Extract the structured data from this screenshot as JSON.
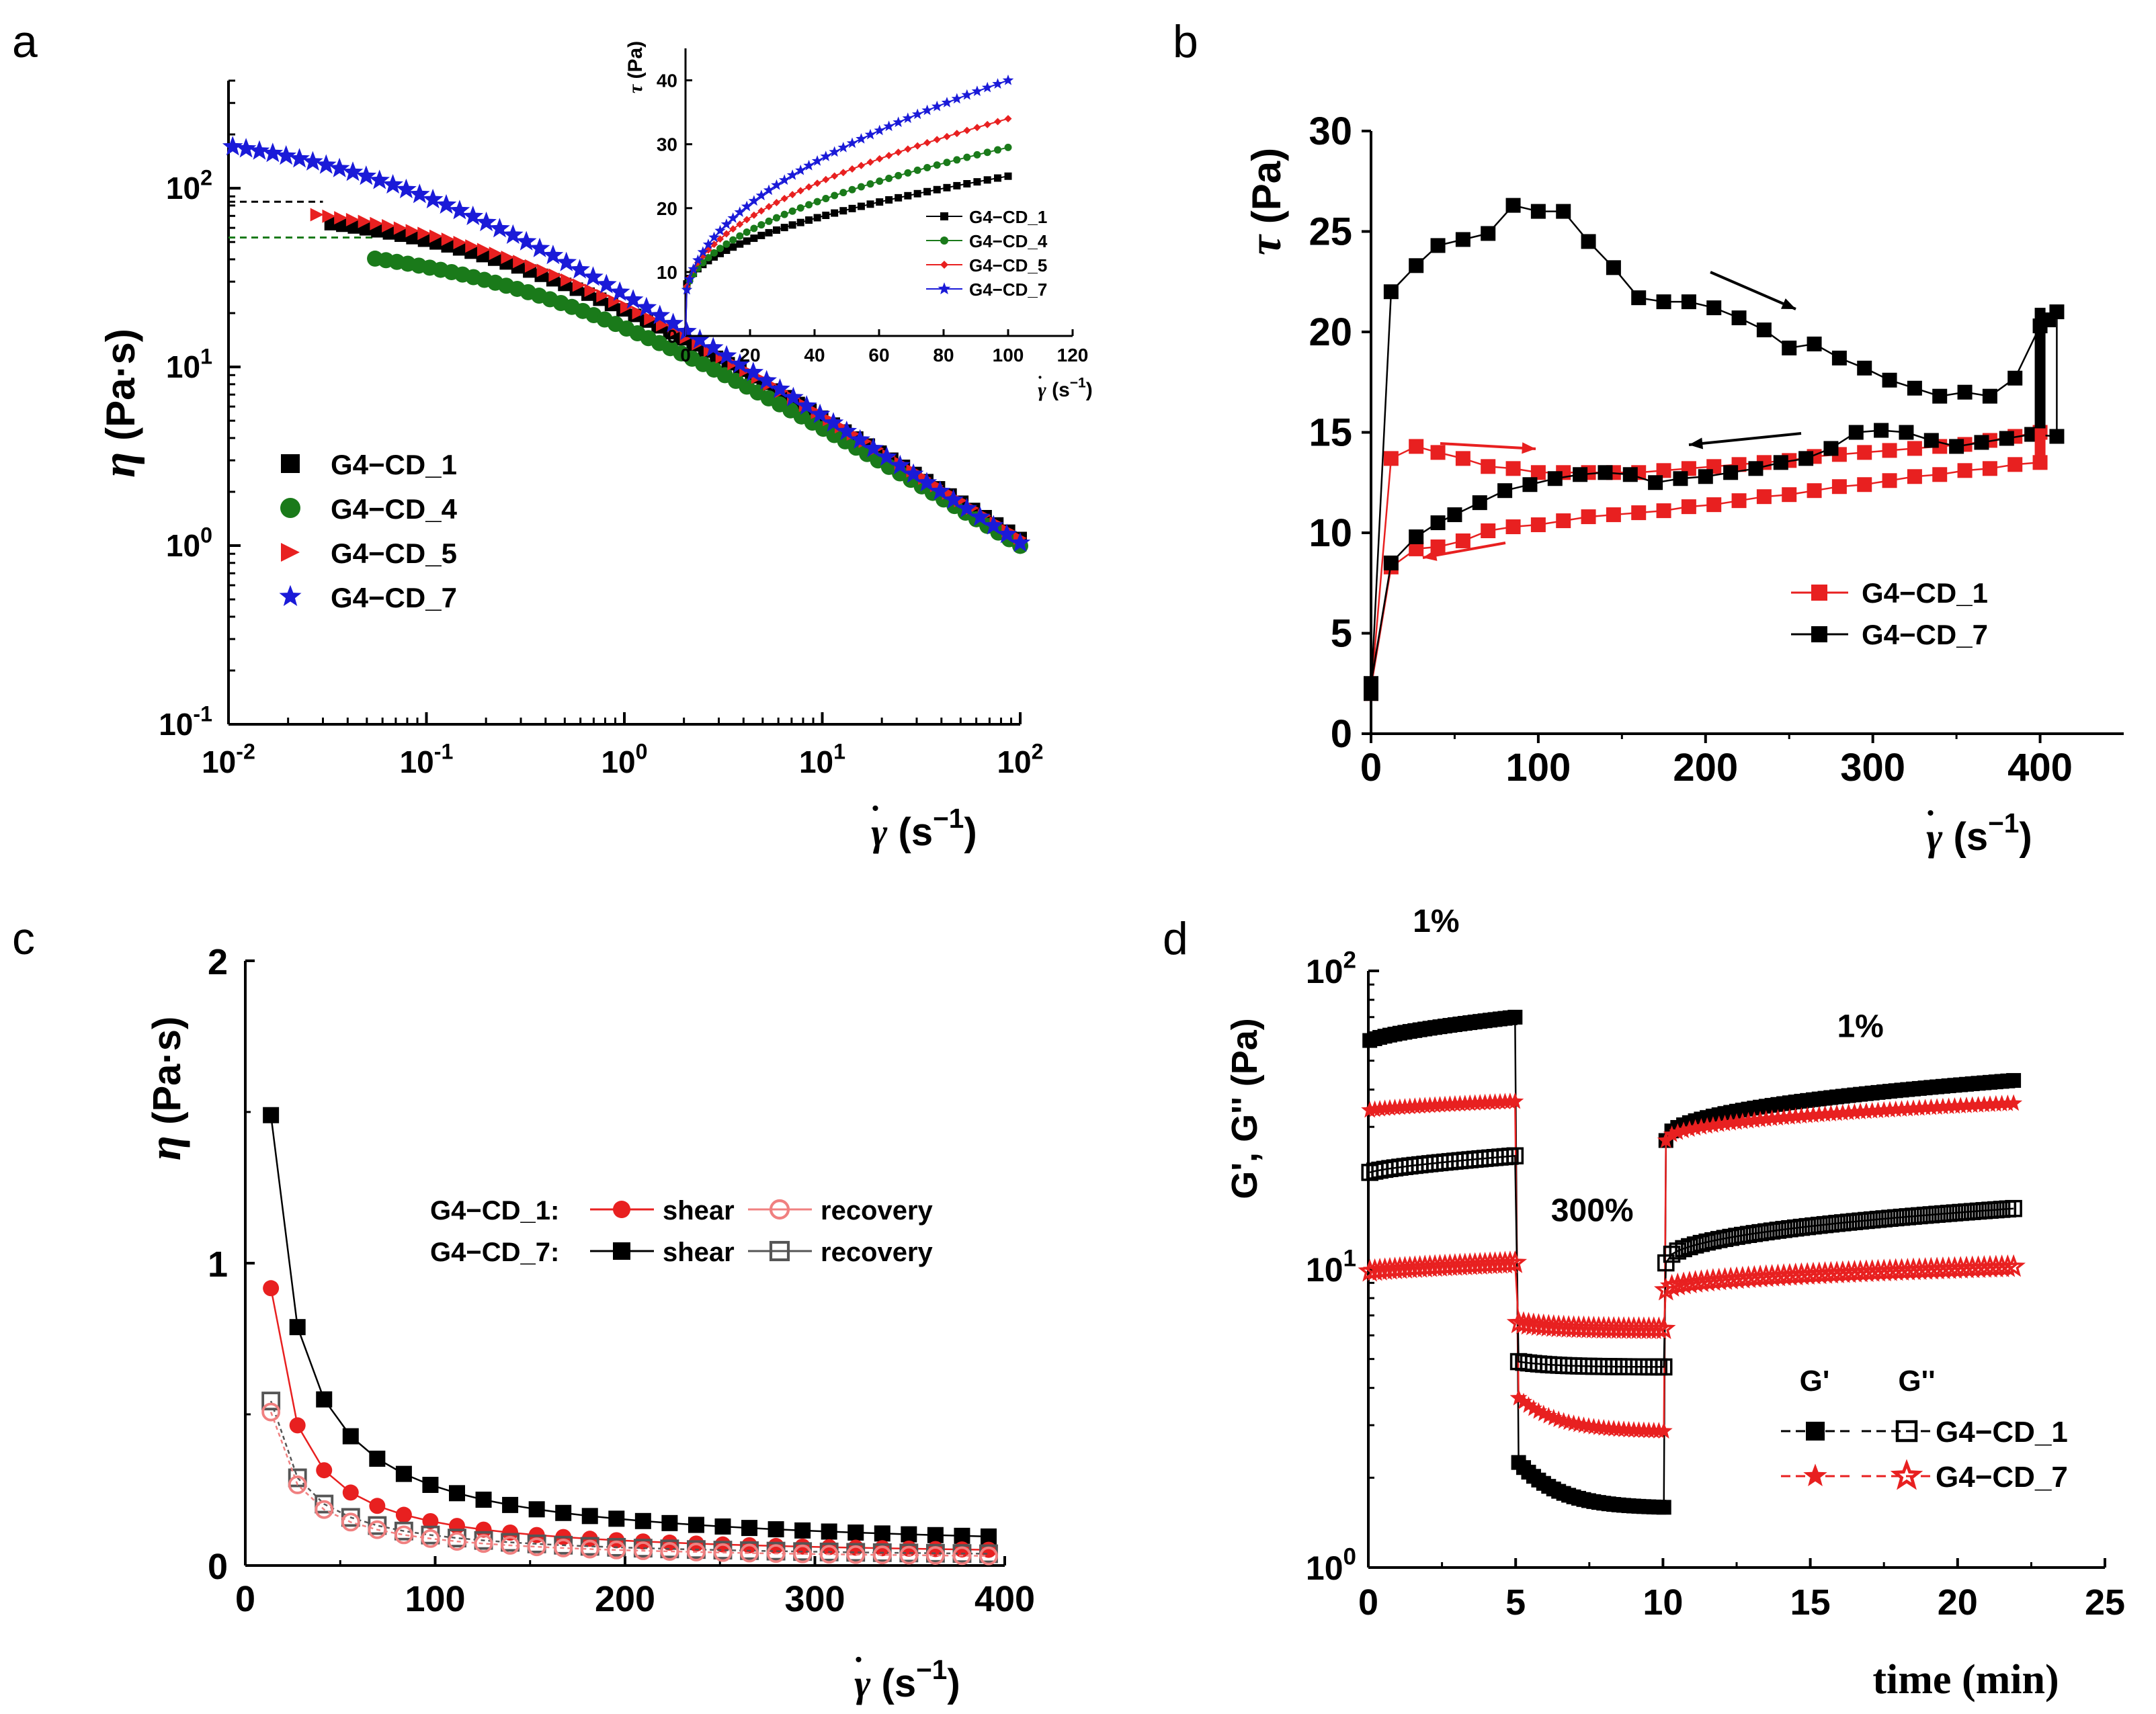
{
  "colors": {
    "black": "#000000",
    "green": "#1a7a1a",
    "red": "#e82020",
    "blue": "#1a1ad8",
    "lightred": "#f08080",
    "gray": "#555555"
  },
  "chart_data": [
    {
      "id": "a",
      "panel_label": "a",
      "type": "scatter",
      "xscale": "log",
      "yscale": "log",
      "xlim": [
        0.01,
        100
      ],
      "ylim": [
        0.1,
        400
      ],
      "xlabel": "γ̇ (s⁻¹)",
      "ylabel": "η (Pa·s)",
      "xticks": [
        0.01,
        0.1,
        1,
        10,
        100
      ],
      "yticks": [
        0.1,
        1,
        10,
        100
      ],
      "xtick_labels": [
        [
          "10",
          "-2"
        ],
        [
          "10",
          "-1"
        ],
        [
          "10",
          "0"
        ],
        [
          "10",
          "1"
        ],
        [
          "10",
          "2"
        ]
      ],
      "ytick_labels": [
        [
          "10",
          "-1"
        ],
        [
          "10",
          "0"
        ],
        [
          "10",
          "1"
        ],
        [
          "10",
          "2"
        ]
      ],
      "legend_position": "left",
      "series": [
        {
          "name": "G4−CD_1",
          "marker": "square",
          "color": "#000000",
          "eta0": 80,
          "x_start": 0.033,
          "lambda": 4.5,
          "n": 0.3
        },
        {
          "name": "G4−CD_4",
          "marker": "circle",
          "color": "#1a7a1a",
          "eta0": 52,
          "x_start": 0.055,
          "lambda": 3.0,
          "n": 0.31
        },
        {
          "name": "G4−CD_5",
          "marker": "triangle-right",
          "color": "#e82020",
          "eta0": 88,
          "x_start": 0.028,
          "lambda": 4.7,
          "n": 0.29
        },
        {
          "name": "G4−CD_7",
          "marker": "star",
          "color": "#1a1ad8",
          "eta0": 220,
          "x_start": 0.0105,
          "lambda": 17,
          "n": 0.28
        }
      ],
      "guides": [
        {
          "y": 84,
          "x_from": 0.01,
          "x_to": 0.03,
          "color": "#000000"
        },
        {
          "y": 53,
          "x_from": 0.01,
          "x_to": 0.055,
          "color": "#1a7a1a"
        }
      ]
    },
    {
      "id": "a_inset",
      "type": "scatter",
      "xlim": [
        0,
        120
      ],
      "ylim": [
        0,
        45
      ],
      "xlabel": "γ̇ (s⁻¹)",
      "ylabel": "τ (Pa)",
      "xticks": [
        0,
        20,
        40,
        60,
        80,
        100,
        120
      ],
      "yticks": [
        0,
        10,
        20,
        30,
        40
      ],
      "legend_position": "right",
      "series": [
        {
          "name": "G4−CD_1",
          "marker": "square",
          "color": "#000000",
          "tau0": 7,
          "end": 25
        },
        {
          "name": "G4−CD_4",
          "marker": "circle",
          "color": "#1a7a1a",
          "tau0": 6,
          "end": 29.5
        },
        {
          "name": "G4−CD_5",
          "marker": "diamond",
          "color": "#e82020",
          "tau0": 6,
          "end": 34
        },
        {
          "name": "G4−CD_7",
          "marker": "star",
          "color": "#1a1ad8",
          "tau0": 5,
          "end": 40
        }
      ]
    },
    {
      "id": "b",
      "panel_label": "b",
      "type": "scatter",
      "xlim": [
        0,
        450
      ],
      "ylim": [
        0,
        30
      ],
      "xlabel": "γ̇ (s⁻¹)",
      "ylabel": "τ (Pa)",
      "xticks": [
        0,
        100,
        200,
        300,
        400
      ],
      "yticks": [
        0,
        5,
        10,
        15,
        20,
        25,
        30
      ],
      "legend_position": "lower-right",
      "series": [
        {
          "name": "G4−CD_1",
          "color": "#e82020",
          "up": [
            [
              0,
              2
            ],
            [
              12,
              13.7
            ],
            [
              27,
              14.3
            ],
            [
              40,
              14
            ],
            [
              55,
              13.7
            ],
            [
              70,
              13.3
            ],
            [
              85,
              13.2
            ],
            [
              100,
              13
            ],
            [
              115,
              13
            ],
            [
              130,
              13
            ],
            [
              145,
              13
            ],
            [
              160,
              13
            ],
            [
              175,
              13.1
            ],
            [
              190,
              13.2
            ],
            [
              205,
              13.3
            ],
            [
              220,
              13.4
            ],
            [
              235,
              13.5
            ],
            [
              250,
              13.6
            ],
            [
              265,
              13.8
            ],
            [
              280,
              13.9
            ],
            [
              295,
              14
            ],
            [
              310,
              14.1
            ],
            [
              325,
              14.2
            ],
            [
              340,
              14.3
            ],
            [
              355,
              14.4
            ],
            [
              370,
              14.6
            ],
            [
              385,
              14.8
            ],
            [
              400,
              15
            ]
          ],
          "down": [
            [
              400,
              13.5
            ],
            [
              385,
              13.4
            ],
            [
              370,
              13.2
            ],
            [
              355,
              13.1
            ],
            [
              340,
              12.9
            ],
            [
              325,
              12.8
            ],
            [
              310,
              12.6
            ],
            [
              295,
              12.4
            ],
            [
              280,
              12.3
            ],
            [
              265,
              12.1
            ],
            [
              250,
              11.9
            ],
            [
              235,
              11.8
            ],
            [
              220,
              11.6
            ],
            [
              205,
              11.4
            ],
            [
              190,
              11.3
            ],
            [
              175,
              11.1
            ],
            [
              160,
              11
            ],
            [
              145,
              10.9
            ],
            [
              130,
              10.8
            ],
            [
              115,
              10.6
            ],
            [
              100,
              10.4
            ],
            [
              85,
              10.3
            ],
            [
              70,
              10.1
            ],
            [
              55,
              9.6
            ],
            [
              40,
              9.3
            ],
            [
              27,
              9.2
            ],
            [
              12,
              8.3
            ],
            [
              0,
              2.3
            ]
          ]
        },
        {
          "name": "G4−CD_7",
          "color": "#000000",
          "up": [
            [
              0,
              2
            ],
            [
              12,
              22
            ],
            [
              27,
              23.3
            ],
            [
              40,
              24.3
            ],
            [
              55,
              24.6
            ],
            [
              70,
              24.9
            ],
            [
              85,
              26.3
            ],
            [
              100,
              26
            ],
            [
              115,
              26
            ],
            [
              130,
              24.5
            ],
            [
              145,
              23.2
            ],
            [
              160,
              21.7
            ],
            [
              175,
              21.5
            ],
            [
              190,
              21.5
            ],
            [
              205,
              21.2
            ],
            [
              220,
              20.7
            ],
            [
              235,
              20.1
            ],
            [
              250,
              19.2
            ],
            [
              265,
              19.4
            ],
            [
              280,
              18.7
            ],
            [
              295,
              18.2
            ],
            [
              310,
              17.6
            ],
            [
              325,
              17.2
            ],
            [
              340,
              16.8
            ],
            [
              355,
              17
            ],
            [
              370,
              16.8
            ],
            [
              385,
              17.7
            ],
            [
              400,
              20.3
            ],
            [
              405,
              20.6
            ],
            [
              410,
              21
            ]
          ],
          "down": [
            [
              410,
              14.8
            ],
            [
              395,
              14.9
            ],
            [
              380,
              14.7
            ],
            [
              365,
              14.5
            ],
            [
              350,
              14.3
            ],
            [
              335,
              14.6
            ],
            [
              320,
              15
            ],
            [
              305,
              15.1
            ],
            [
              290,
              15
            ],
            [
              275,
              14.2
            ],
            [
              260,
              13.7
            ],
            [
              245,
              13.5
            ],
            [
              230,
              13.2
            ],
            [
              215,
              13
            ],
            [
              200,
              12.8
            ],
            [
              185,
              12.7
            ],
            [
              170,
              12.5
            ],
            [
              155,
              12.9
            ],
            [
              140,
              13
            ],
            [
              125,
              12.9
            ],
            [
              110,
              12.7
            ],
            [
              95,
              12.4
            ],
            [
              80,
              12.1
            ],
            [
              65,
              11.5
            ],
            [
              50,
              10.9
            ],
            [
              40,
              10.5
            ],
            [
              27,
              9.8
            ],
            [
              12,
              8.5
            ],
            [
              0,
              2.5
            ]
          ]
        }
      ]
    },
    {
      "id": "c",
      "panel_label": "c",
      "type": "scatter",
      "xlim": [
        0,
        400
      ],
      "ylim": [
        0,
        2
      ],
      "xlabel": "γ̇ (s⁻¹)",
      "ylabel": "η (Pa·s)",
      "xticks": [
        0,
        100,
        200,
        300,
        400
      ],
      "yticks": [
        0,
        1,
        2
      ],
      "legend_position": "center",
      "legend": [
        {
          "group": "G4−CD_1:",
          "items": [
            {
              "label": "shear",
              "marker": "circle",
              "filled": true,
              "color": "#e82020"
            },
            {
              "label": "recovery",
              "marker": "circle",
              "filled": false,
              "color": "#f08080"
            }
          ]
        },
        {
          "group": "G4−CD_7:",
          "items": [
            {
              "label": "shear",
              "marker": "square",
              "filled": true,
              "color": "#000000"
            },
            {
              "label": "recovery",
              "marker": "square",
              "filled": false,
              "color": "#555555"
            }
          ]
        }
      ],
      "series": [
        {
          "name": "G4−CD_7 shear",
          "marker": "square",
          "filled": true,
          "color": "#000000",
          "K": 16,
          "p": 0.92,
          "floor": 0.03
        },
        {
          "name": "G4−CD_1 shear",
          "marker": "circle",
          "filled": true,
          "color": "#e82020",
          "K": 11.8,
          "p": 0.99,
          "floor": 0.02
        },
        {
          "name": "G4−CD_7 recovery",
          "marker": "square",
          "filled": false,
          "color": "#555555",
          "K": 5.8,
          "p": 0.92,
          "floor": 0.015
        },
        {
          "name": "G4−CD_1 recovery",
          "marker": "circle",
          "filled": false,
          "color": "#f08080",
          "K": 5.6,
          "p": 0.93,
          "floor": 0.01
        }
      ]
    },
    {
      "id": "d",
      "panel_label": "d",
      "type": "scatter",
      "yscale": "log",
      "xlim": [
        0,
        25
      ],
      "ylim": [
        1,
        100
      ],
      "xlabel": "time (min)",
      "ylabel": "G', G'' (Pa)",
      "xticks": [
        0,
        5,
        10,
        15,
        20,
        25
      ],
      "yticks": [
        1,
        10,
        100
      ],
      "ytick_labels": [
        [
          "10",
          "0"
        ],
        [
          "10",
          "1"
        ],
        [
          "10",
          "2"
        ]
      ],
      "annotations": [
        {
          "text": "1%",
          "x": 2.3,
          "y": 135
        },
        {
          "text": "300%",
          "x": 7.6,
          "y": 14.5
        },
        {
          "text": "1%",
          "x": 16.7,
          "y": 60
        }
      ],
      "legend_position": "lower-right",
      "legend": {
        "col1": "G'",
        "col2": "G''",
        "rows": [
          "G4−CD_1",
          "G4−CD_7"
        ]
      },
      "series": [
        {
          "name": "G4−CD_1 G'",
          "marker": "square",
          "filled": true,
          "color": "#000000",
          "s1": [
            58,
            70
          ],
          "s2": [
            2.25,
            1.58
          ],
          "s3": [
            27,
            43
          ]
        },
        {
          "name": "G4−CD_7 G'",
          "marker": "star",
          "filled": true,
          "color": "#e82020",
          "s1": [
            34,
            36.5
          ],
          "s2": [
            3.7,
            2.85
          ],
          "s3": [
            27,
            36
          ]
        },
        {
          "name": "G4−CD_1 G''",
          "marker": "square",
          "filled": false,
          "color": "#000000",
          "s1": [
            21,
            24
          ],
          "s2": [
            4.9,
            4.7
          ],
          "s3": [
            10.5,
            16
          ]
        },
        {
          "name": "G4−CD_7 G''",
          "marker": "star",
          "filled": false,
          "color": "#e82020",
          "s1": [
            9.8,
            10.5
          ],
          "s2": [
            6.6,
            6.3
          ],
          "s3": [
            8.5,
            10.2
          ]
        }
      ]
    }
  ]
}
